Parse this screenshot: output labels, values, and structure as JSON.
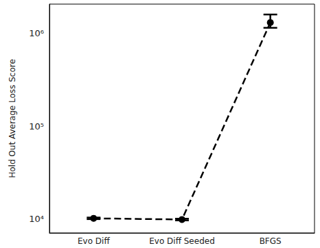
{
  "chart_data": {
    "type": "line",
    "y_label": "Hold Out Average Loss Score",
    "categories": [
      "Evo Diff",
      "Evo Diff Seeded",
      "BFGS"
    ],
    "values": [
      10200,
      9900,
      1310000
    ],
    "errors": [
      [
        10000,
        10400
      ],
      [
        9700,
        10100
      ],
      [
        1150000,
        1600000
      ]
    ],
    "color": "#000000",
    "marker": "circle",
    "line_style": "dashed",
    "log": "y",
    "ylim": [
      7100,
      2070000
    ],
    "yticks": [
      {
        "value": 10000,
        "label": "10⁴"
      },
      {
        "value": 100000,
        "label": "10⁵"
      },
      {
        "value": 1000000,
        "label": "10⁶"
      }
    ],
    "grid": false
  }
}
